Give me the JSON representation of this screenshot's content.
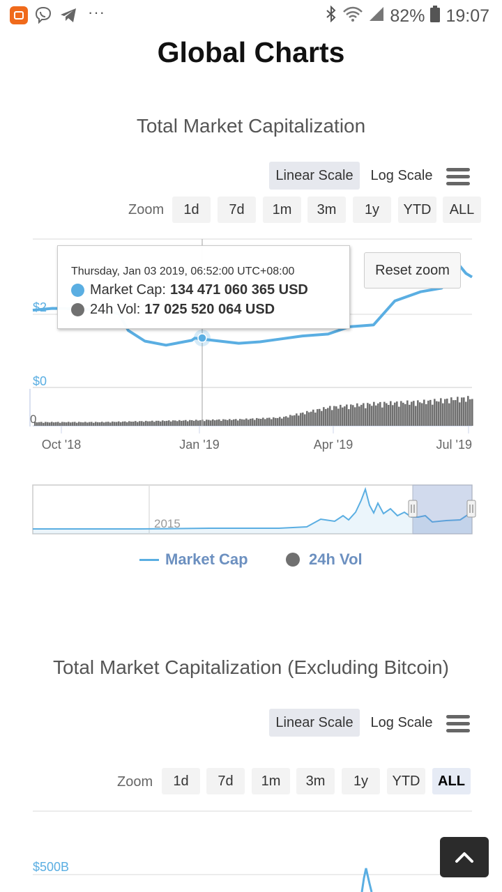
{
  "status_bar": {
    "battery": "82%",
    "time": "19:07"
  },
  "page": {
    "title": "Global Charts"
  },
  "chart1": {
    "title": "Total Market Capitalization",
    "scale": {
      "linear_label": "Linear Scale",
      "log_label": "Log Scale",
      "active": "linear"
    },
    "zoom": {
      "label": "Zoom",
      "buttons": [
        "1d",
        "7d",
        "1m",
        "3m",
        "1y",
        "YTD",
        "ALL"
      ],
      "selected": null
    },
    "reset_zoom_label": "Reset zoom",
    "tooltip": {
      "date": "Thursday, Jan 03 2019, 06:52:00 UTC+08:00",
      "market_cap_label": "Market Cap:",
      "market_cap_value": "134 471 060 365 USD",
      "vol_label": "24h Vol:",
      "vol_value": "17 025 520 064 USD"
    },
    "y_labels": {
      "top_partial": "$2",
      "bottom": "$0",
      "volume_zero": "0"
    },
    "x_labels": [
      "Oct '18",
      "Jan '19",
      "Apr '19",
      "Jul '19"
    ],
    "navigator_label": "2015",
    "legend": {
      "market_cap": "Market Cap",
      "volume": "24h Vol"
    },
    "colors": {
      "market_cap": "#5aaee2",
      "volume": "#707070",
      "legend_text": "#6c90c0"
    }
  },
  "chart2": {
    "title": "Total Market Capitalization (Excluding Bitcoin)",
    "scale": {
      "linear_label": "Linear Scale",
      "log_label": "Log Scale",
      "active": "linear"
    },
    "zoom": {
      "label": "Zoom",
      "buttons": [
        "1d",
        "7d",
        "1m",
        "3m",
        "1y",
        "YTD",
        "ALL"
      ],
      "selected": "ALL"
    },
    "y_label_top": "$500B"
  },
  "chart_data": [
    {
      "type": "line",
      "series": [
        {
          "name": "Market Cap",
          "x": [
            "2018-09-18",
            "2018-10-01",
            "2018-10-15",
            "2018-11-01",
            "2018-11-14",
            "2018-11-20",
            "2018-12-01",
            "2018-12-15",
            "2019-01-01",
            "2019-01-03",
            "2019-01-15",
            "2019-02-01",
            "2019-02-15",
            "2019-03-01",
            "2019-03-15",
            "2019-04-01",
            "2019-04-15",
            "2019-05-01",
            "2019-05-15",
            "2019-06-01",
            "2019-06-15",
            "2019-06-26",
            "2019-07-01",
            "2019-07-05"
          ],
          "values": [
            210,
            215,
            214,
            210,
            200,
            155,
            126,
            115,
            128,
            134,
            128,
            120,
            124,
            132,
            140,
            145,
            165,
            170,
            235,
            260,
            270,
            335,
            310,
            300
          ]
        },
        {
          "name": "24h Vol",
          "type": "bar",
          "x": [
            "2018-10-01",
            "2018-11-01",
            "2018-12-01",
            "2019-01-01",
            "2019-02-01",
            "2019-03-01",
            "2019-04-01",
            "2019-05-01",
            "2019-06-01",
            "2019-07-01"
          ],
          "values": [
            4,
            4,
            5,
            6,
            7,
            9,
            20,
            24,
            26,
            30
          ]
        }
      ],
      "x_tick_labels": [
        "Oct '18",
        "Jan '19",
        "Apr '19",
        "Jul '19"
      ],
      "y_tick_labels": [
        "$0"
      ],
      "legend": [
        "Market Cap",
        "24h Vol"
      ],
      "legend_position": "bottom"
    }
  ]
}
